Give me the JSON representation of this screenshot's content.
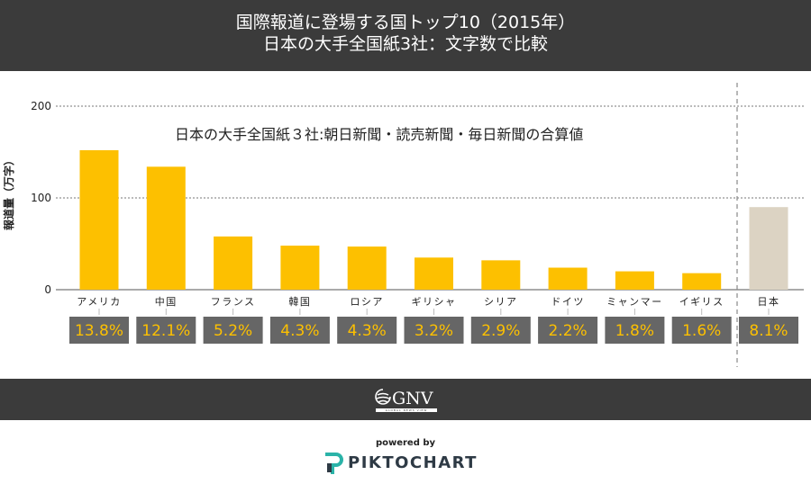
{
  "header": {
    "title_line1": "国際報道に登場する国トップ10（2015年）",
    "title_line2": "日本の大手全国紙3社：文字数で比較"
  },
  "chart_data": {
    "type": "bar",
    "subtitle": "日本の大手全国紙３社:朝日新聞・読売新聞・毎日新聞の合算値",
    "ylabel": "報道量（万字）",
    "ylim": [
      0,
      200
    ],
    "yticks": [
      0,
      100,
      200
    ],
    "grid": true,
    "categories": [
      "アメリカ",
      "中国",
      "フランス",
      "韓国",
      "ロシア",
      "ギリシャ",
      "シリア",
      "ドイツ",
      "ミャンマー",
      "イギリス",
      "日本"
    ],
    "values": [
      152,
      134,
      58,
      48,
      47,
      35,
      32,
      24,
      20,
      18,
      90
    ],
    "percent_labels": [
      "13.8%",
      "12.1%",
      "5.2%",
      "4.3%",
      "4.3%",
      "3.2%",
      "2.9%",
      "2.2%",
      "1.8%",
      "1.6%",
      "8.1%"
    ],
    "bar_color": "#fdc000",
    "highlight_bar_color": "#dcd3c3",
    "label_box_color": "#666666",
    "label_text_color": "#fdc000"
  },
  "footer": {
    "logo_text": "GNV",
    "logo_strip": "GLOBAL NEWS VIEW",
    "powered_by": "powered by",
    "brand": "PIKTOCHART"
  }
}
